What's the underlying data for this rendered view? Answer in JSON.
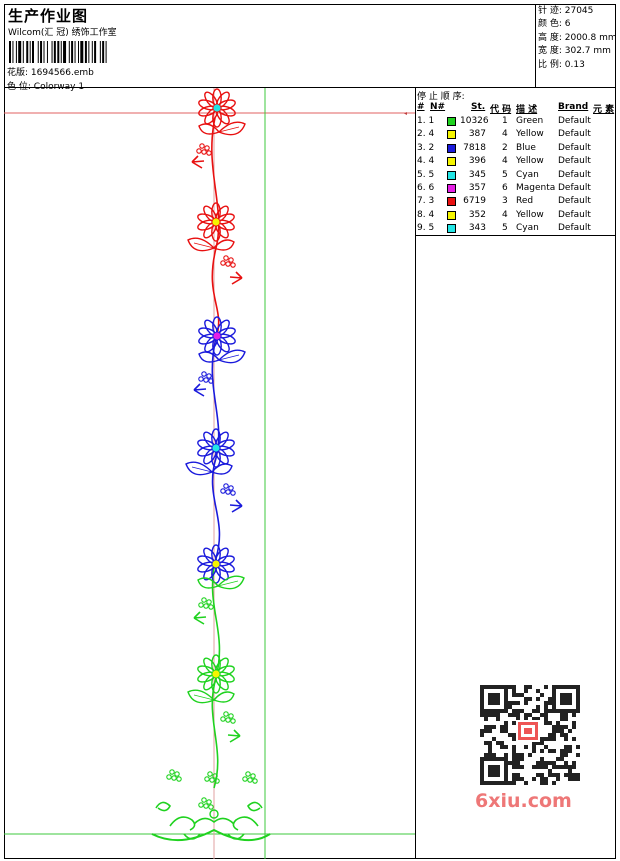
{
  "header": {
    "title": "生产作业图",
    "company": "Wilcom(汇 冠) 绣饰工作室",
    "pattern_label": "花版:",
    "pattern_value": "1694566.emb",
    "colorway_label": "色 位:",
    "colorway_value": "Colorway 1"
  },
  "stats": {
    "stitches": "针 迹:   27045",
    "colors": "颜 色:   6",
    "height": "高 度:   2000.8 mm",
    "width": "宽 度:   302.7 mm",
    "scale": "比 例:   0.13"
  },
  "stop_sequence": {
    "heading": "停 止 顺 序:",
    "columns": [
      "#",
      "N#",
      "St.",
      "代 码",
      "描 述",
      "Brand",
      "元 素"
    ],
    "rows": [
      {
        "idx": "1. 1",
        "stitches": "10326",
        "code": "1",
        "desc": "Green",
        "brand": "Default",
        "color": "#1fd21f"
      },
      {
        "idx": "2. 4",
        "stitches": "387",
        "code": "4",
        "desc": "Yellow",
        "brand": "Default",
        "color": "#f5f500"
      },
      {
        "idx": "3. 2",
        "stitches": "7818",
        "code": "2",
        "desc": "Blue",
        "brand": "Default",
        "color": "#1a1adc"
      },
      {
        "idx": "4. 4",
        "stitches": "396",
        "code": "4",
        "desc": "Yellow",
        "brand": "Default",
        "color": "#f5f500"
      },
      {
        "idx": "5. 5",
        "stitches": "345",
        "code": "5",
        "desc": "Cyan",
        "brand": "Default",
        "color": "#22e6e6"
      },
      {
        "idx": "6. 6",
        "stitches": "357",
        "code": "6",
        "desc": "Magenta",
        "brand": "Default",
        "color": "#e61ee6"
      },
      {
        "idx": "7. 3",
        "stitches": "6719",
        "code": "3",
        "desc": "Red",
        "brand": "Default",
        "color": "#e81010"
      },
      {
        "idx": "8. 4",
        "stitches": "352",
        "code": "4",
        "desc": "Yellow",
        "brand": "Default",
        "color": "#f5f500"
      },
      {
        "idx": "9. 5",
        "stitches": "343",
        "code": "5",
        "desc": "Cyan",
        "brand": "Default",
        "color": "#22e6e6"
      }
    ]
  },
  "watermark": {
    "text": "6xiu.com"
  },
  "colors": {
    "red": "#e81010",
    "blue": "#1a1adc",
    "green": "#1fd21f",
    "guide_red": "#e06060",
    "guide_green": "#3cc83c"
  }
}
